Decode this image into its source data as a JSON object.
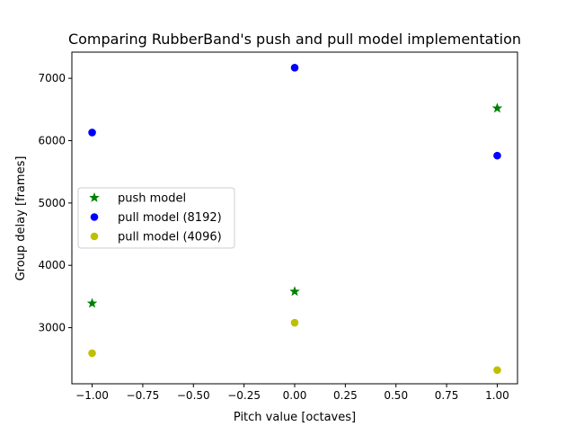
{
  "chart_data": {
    "type": "scatter",
    "title": "Comparing RubberBand's push and pull model implementation",
    "xlabel": "Pitch value [octaves]",
    "ylabel": "Group delay [frames]",
    "xlim": [
      -1.1,
      1.1
    ],
    "ylim": [
      2100,
      7420
    ],
    "xticks": [
      -1.0,
      -0.75,
      -0.5,
      -0.25,
      0.0,
      0.25,
      0.5,
      0.75,
      1.0
    ],
    "xtick_labels": [
      "−1.00",
      "−0.75",
      "−0.50",
      "−0.25",
      "0.00",
      "0.25",
      "0.50",
      "0.75",
      "1.00"
    ],
    "yticks": [
      3000,
      4000,
      5000,
      6000,
      7000
    ],
    "ytick_labels": [
      "3000",
      "4000",
      "5000",
      "6000",
      "7000"
    ],
    "grid": false,
    "legend_position": "center-left",
    "series": [
      {
        "name": "push model",
        "marker": "star",
        "color": "#008000",
        "x": [
          -1.0,
          0.0,
          1.0
        ],
        "y": [
          3390,
          3580,
          6520
        ]
      },
      {
        "name": "pull model (8192)",
        "marker": "circle",
        "color": "#0000ff",
        "x": [
          -1.0,
          0.0,
          1.0
        ],
        "y": [
          6130,
          7170,
          5760
        ]
      },
      {
        "name": "pull model (4096)",
        "marker": "circle",
        "color": "#bfbf00",
        "x": [
          -1.0,
          0.0,
          1.0
        ],
        "y": [
          2590,
          3080,
          2320
        ]
      }
    ]
  }
}
